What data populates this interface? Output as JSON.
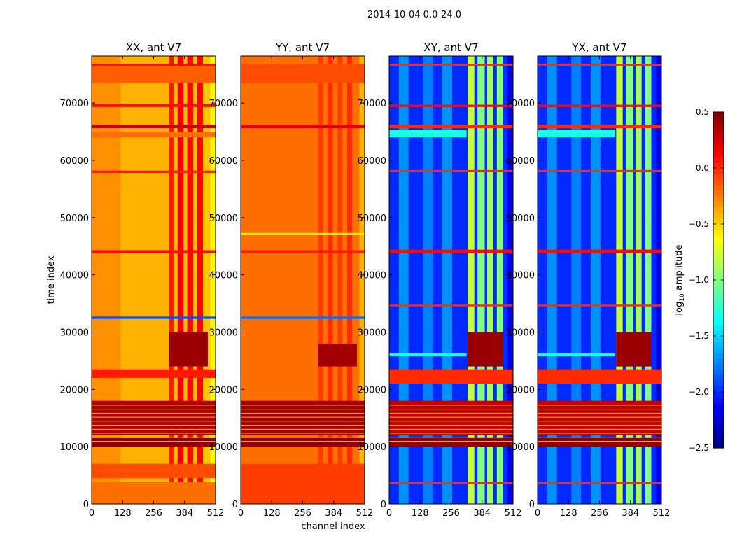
{
  "chart_data": {
    "type": "heatmap",
    "suptitle": "2014-10-04 0.0-24.0",
    "xlabel": "channel index",
    "ylabel": "time index",
    "xlim": [
      0,
      512
    ],
    "ylim": [
      0,
      78200
    ],
    "xticks": [
      0,
      128,
      256,
      384,
      512
    ],
    "yticks": [
      0,
      10000,
      20000,
      30000,
      40000,
      50000,
      60000,
      70000
    ],
    "colorbar": {
      "label": "log10 amplitude",
      "label_main": "log",
      "label_sub": "10",
      "label_rest": " amplitude",
      "range": [
        -2.5,
        0.5
      ],
      "ticks": [
        -2.5,
        -2.0,
        -1.5,
        -1.0,
        -0.5,
        0.0,
        0.5
      ],
      "tick_labels": [
        "−2.5",
        "−2.0",
        "−1.5",
        "−1.0",
        "−0.5",
        "0.0",
        "0.5"
      ],
      "colormap": "jet"
    },
    "panels": [
      {
        "title": "XX, ant V7",
        "base": -0.45,
        "columns": [
          {
            "ch": [
              0,
              120
            ],
            "v": -0.3
          },
          {
            "ch": [
              120,
              320
            ],
            "v": -0.4
          },
          {
            "ch": [
              490,
              512
            ],
            "v": -0.6
          },
          {
            "ch": [
              320,
              340
            ],
            "v": 0.05
          },
          {
            "ch": [
              355,
              380
            ],
            "v": 0.15
          },
          {
            "ch": [
              395,
              420
            ],
            "v": 0.1
          },
          {
            "ch": [
              435,
              460
            ],
            "v": 0.12
          }
        ],
        "bands": [
          {
            "t": [
              0,
              3800
            ],
            "v": -0.2
          },
          {
            "t": [
              4500,
              7000
            ],
            "v": -0.1
          },
          {
            "t": [
              10000,
              11500
            ],
            "v": 0.45
          },
          {
            "t": [
              12000,
              18000
            ],
            "v": 0.35
          },
          {
            "t": [
              22000,
              23500
            ],
            "v": 0.05
          },
          {
            "t": [
              24000,
              30000
            ],
            "v": 0.42,
            "ch": [
              320,
              480
            ]
          },
          {
            "t": [
              32300,
              32700
            ],
            "v": -1.9
          },
          {
            "t": [
              43800,
              44300
            ],
            "v": 0.1
          },
          {
            "t": [
              57800,
              58200
            ],
            "v": 0.05
          },
          {
            "t": [
              64000,
              65000
            ],
            "v": -0.2
          },
          {
            "t": [
              65600,
              66200
            ],
            "v": 0.3
          },
          {
            "t": [
              69300,
              69800
            ],
            "v": 0.1
          },
          {
            "t": [
              73500,
              76500
            ],
            "v": -0.15
          },
          {
            "t": [
              76500,
              76800
            ],
            "v": 0.1
          }
        ]
      },
      {
        "title": "YY, ant V7",
        "base": -0.2,
        "columns": [
          {
            "ch": [
              0,
              512
            ],
            "v": -0.2
          },
          {
            "ch": [
              490,
              512
            ],
            "v": -0.4
          },
          {
            "ch": [
              320,
              340
            ],
            "v": -0.05
          },
          {
            "ch": [
              360,
              380
            ],
            "v": 0.0
          },
          {
            "ch": [
              400,
              420
            ],
            "v": -0.05
          },
          {
            "ch": [
              440,
              460
            ],
            "v": 0.0
          }
        ],
        "bands": [
          {
            "t": [
              0,
              7000
            ],
            "v": -0.05
          },
          {
            "t": [
              10000,
              11500
            ],
            "v": 0.45
          },
          {
            "t": [
              12000,
              18000
            ],
            "v": 0.38
          },
          {
            "t": [
              24000,
              28000
            ],
            "v": 0.4,
            "ch": [
              320,
              480
            ]
          },
          {
            "t": [
              32300,
              32700
            ],
            "v": -1.8
          },
          {
            "t": [
              43800,
              44300
            ],
            "v": 0.05
          },
          {
            "t": [
              47000,
              47300
            ],
            "v": -0.6
          },
          {
            "t": [
              65600,
              66200
            ],
            "v": 0.2
          },
          {
            "t": [
              73500,
              76800
            ],
            "v": -0.1
          }
        ]
      },
      {
        "title": "XY, ant V7",
        "base": -2.0,
        "columns": [
          {
            "ch": [
              0,
              512
            ],
            "v": -2.0
          },
          {
            "ch": [
              40,
              80
            ],
            "v": -1.7
          },
          {
            "ch": [
              140,
              180
            ],
            "v": -1.75
          },
          {
            "ch": [
              220,
              260
            ],
            "v": -1.7
          },
          {
            "ch": [
              325,
              352
            ],
            "v": -0.8
          },
          {
            "ch": [
              365,
              395
            ],
            "v": -1.0
          },
          {
            "ch": [
              405,
              430
            ],
            "v": -0.9
          },
          {
            "ch": [
              445,
              470
            ],
            "v": -1.0
          },
          {
            "ch": [
              490,
              512
            ],
            "v": -2.2
          }
        ],
        "bands": [
          {
            "t": [
              3500,
              3800
            ],
            "v": 0.0
          },
          {
            "t": [
              10000,
              11500
            ],
            "v": 0.45
          },
          {
            "t": [
              12000,
              18000
            ],
            "v": 0.3
          },
          {
            "t": [
              21000,
              23500
            ],
            "v": 0.0
          },
          {
            "t": [
              24000,
              30000
            ],
            "v": 0.42,
            "ch": [
              325,
              470
            ]
          },
          {
            "t": [
              25800,
              26300
            ],
            "v": -1.3,
            "ch": [
              0,
              320
            ]
          },
          {
            "t": [
              34500,
              34800
            ],
            "v": 0.0
          },
          {
            "t": [
              43800,
              44400
            ],
            "v": 0.1
          },
          {
            "t": [
              58000,
              58300
            ],
            "v": 0.0
          },
          {
            "t": [
              64000,
              65300
            ],
            "v": -1.3,
            "ch": [
              0,
              320
            ]
          },
          {
            "t": [
              65600,
              66200
            ],
            "v": 0.0
          },
          {
            "t": [
              69300,
              69700
            ],
            "v": 0.1
          },
          {
            "t": [
              76500,
              76800
            ],
            "v": 0.0
          }
        ]
      },
      {
        "title": "YX, ant V7",
        "base": -2.0,
        "columns": [
          {
            "ch": [
              0,
              512
            ],
            "v": -2.0
          },
          {
            "ch": [
              40,
              80
            ],
            "v": -1.7
          },
          {
            "ch": [
              140,
              180
            ],
            "v": -1.75
          },
          {
            "ch": [
              220,
              260
            ],
            "v": -1.7
          },
          {
            "ch": [
              325,
              352
            ],
            "v": -0.8
          },
          {
            "ch": [
              365,
              395
            ],
            "v": -1.0
          },
          {
            "ch": [
              405,
              430
            ],
            "v": -0.9
          },
          {
            "ch": [
              445,
              470
            ],
            "v": -1.0
          },
          {
            "ch": [
              490,
              512
            ],
            "v": -2.2
          }
        ],
        "bands": [
          {
            "t": [
              3500,
              3800
            ],
            "v": 0.0
          },
          {
            "t": [
              10000,
              11500
            ],
            "v": 0.45
          },
          {
            "t": [
              12000,
              18000
            ],
            "v": 0.3
          },
          {
            "t": [
              21000,
              23500
            ],
            "v": 0.0
          },
          {
            "t": [
              24000,
              30000
            ],
            "v": 0.42,
            "ch": [
              325,
              470
            ]
          },
          {
            "t": [
              25800,
              26300
            ],
            "v": -1.3,
            "ch": [
              0,
              320
            ]
          },
          {
            "t": [
              34500,
              34800
            ],
            "v": 0.0
          },
          {
            "t": [
              43800,
              44400
            ],
            "v": 0.1
          },
          {
            "t": [
              58000,
              58300
            ],
            "v": 0.0
          },
          {
            "t": [
              64000,
              65300
            ],
            "v": -1.3,
            "ch": [
              0,
              320
            ]
          },
          {
            "t": [
              65600,
              66200
            ],
            "v": 0.0
          },
          {
            "t": [
              69300,
              69700
            ],
            "v": 0.1
          },
          {
            "t": [
              76500,
              76800
            ],
            "v": 0.0
          }
        ]
      }
    ]
  }
}
